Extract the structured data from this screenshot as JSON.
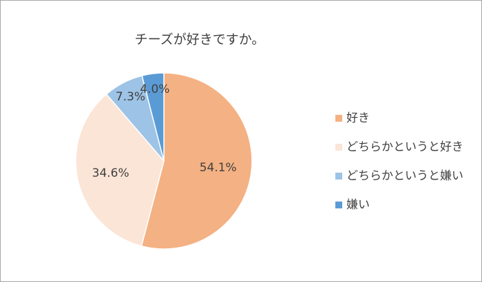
{
  "chart_data": {
    "type": "pie",
    "title": "チーズが好きですか。",
    "categories": [
      "好き",
      "どちらかというと好き",
      "どちらかというと嫌い",
      "嫌い"
    ],
    "values": [
      54.1,
      34.6,
      7.3,
      4.0
    ],
    "value_labels": [
      "54.1%",
      "34.6%",
      "7.3%",
      "4.0%"
    ],
    "colors": [
      "#f4b183",
      "#fbe5d6",
      "#9dc3e6",
      "#5b9bd5"
    ],
    "legend": "right"
  }
}
